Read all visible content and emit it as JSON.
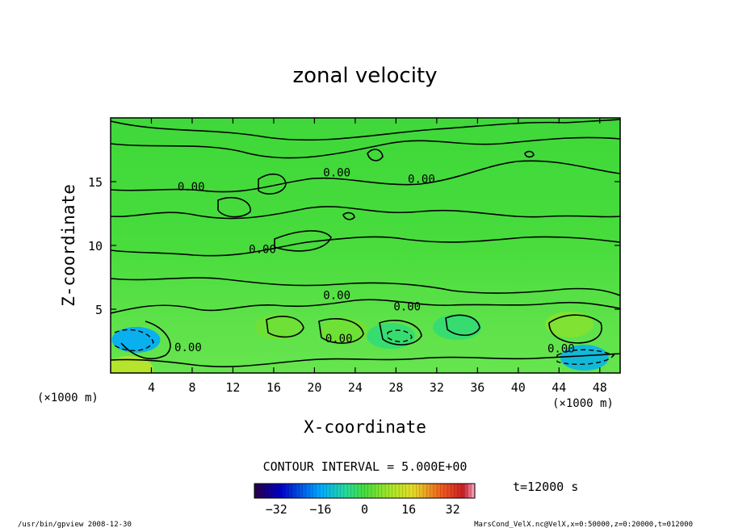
{
  "chart_data": {
    "type": "heatmap",
    "title": "zonal velocity",
    "xlabel": "X-coordinate",
    "ylabel": "Z-coordinate",
    "x_unit": "(×1000 m)",
    "x_unit_right": "(×1000 m)",
    "xlim": [
      0,
      50
    ],
    "ylim": [
      0,
      20
    ],
    "x_ticks": [
      "4",
      "8",
      "12",
      "16",
      "20",
      "24",
      "28",
      "32",
      "36",
      "40",
      "44",
      "48"
    ],
    "y_ticks": [
      "5",
      "10",
      "15"
    ],
    "contour_interval": "CONTOUR INTERVAL = 5.000E+00",
    "time_label": "t=12000 s",
    "colorbar_ticks": [
      "−32",
      "−16",
      "0",
      "16",
      "32"
    ],
    "colorbar_range": [
      -40,
      40
    ],
    "contour_labels": [
      {
        "text": "0.00",
        "x": 7.9,
        "z": 14.3
      },
      {
        "text": "0.00",
        "x": 22.2,
        "z": 15.4
      },
      {
        "text": "0.00",
        "x": 30.5,
        "z": 14.9
      },
      {
        "text": "0.00",
        "x": 14.9,
        "z": 9.4
      },
      {
        "text": "0.00",
        "x": 22.2,
        "z": 5.8
      },
      {
        "text": "0.00",
        "x": 29.1,
        "z": 4.9
      },
      {
        "text": "0.00",
        "x": 7.6,
        "z": 1.7
      },
      {
        "text": "0.00",
        "x": 22.4,
        "z": 2.4
      },
      {
        "text": "0.00",
        "x": 44.2,
        "z": 1.6
      }
    ],
    "anomalies": [
      {
        "x": 2.5,
        "z": 2.6,
        "value": -16
      },
      {
        "x": 1.8,
        "z": 0.3,
        "value": 12
      },
      {
        "x": 16.5,
        "z": 3.6,
        "value": 4
      },
      {
        "x": 23.0,
        "z": 3.3,
        "value": 4
      },
      {
        "x": 27.5,
        "z": 2.9,
        "value": -4
      },
      {
        "x": 34.0,
        "z": 3.6,
        "value": -4
      },
      {
        "x": 45.0,
        "z": 3.8,
        "value": 6
      },
      {
        "x": 46.5,
        "z": 1.2,
        "value": -14
      }
    ]
  },
  "footer": {
    "left": "/usr/bin/gpview  2008-12-30",
    "right": "MarsCond_VelX.nc@VelX,x=0:50000,z=0:20000,t=012000"
  }
}
